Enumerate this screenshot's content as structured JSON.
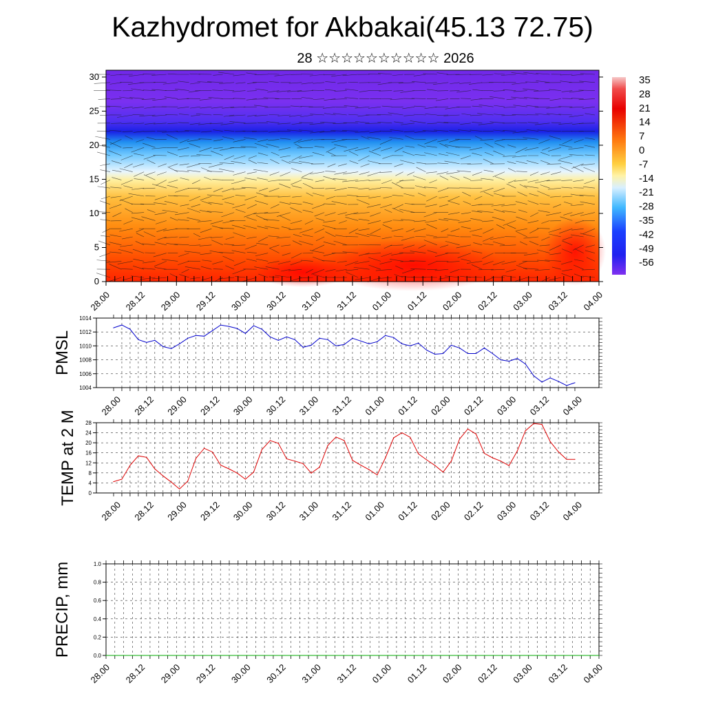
{
  "title": "Kazhydromet for Akbakai(45.13 72.75)",
  "subtitle": "28 ☆☆☆☆☆☆☆☆☆☆ 2026",
  "chart_data": [
    {
      "type": "heatmap",
      "name": "vertical cross-section (temperature with wind vectors)",
      "x_ticks": [
        "28.00",
        "28.12",
        "29.00",
        "29.12",
        "30.00",
        "30.12",
        "31.00",
        "31.12",
        "01.00",
        "01.12",
        "02.00",
        "02.12",
        "03.00",
        "03.12",
        "04.00"
      ],
      "y_ticks": [
        0,
        5,
        10,
        15,
        20,
        25,
        30
      ],
      "ylim": [
        0,
        31
      ],
      "colorbar_labels": [
        "35",
        "28",
        "21",
        "14",
        "7",
        "0",
        "-7",
        "-14",
        "-21",
        "-28",
        "-35",
        "-42",
        "-49",
        "-56"
      ],
      "colors": {
        "warm": "#ff1a00",
        "orange": "#ff9a1a",
        "yellow": "#ffe070",
        "cold_light": "#e0f0ff",
        "cold_mid": "#3fb0ff",
        "cold_deep": "#1a20e6",
        "violet": "#7a30f0"
      }
    },
    {
      "type": "line",
      "ylabel": "PMSL",
      "x_ticks": [
        "28.00",
        "28.12",
        "29.00",
        "29.12",
        "30.00",
        "30.12",
        "31.00",
        "31.12",
        "01.00",
        "01.12",
        "02.00",
        "02.12",
        "03.00",
        "03.12",
        "04.00"
      ],
      "y_ticks": [
        1004,
        1006,
        1008,
        1010,
        1012,
        1014
      ],
      "ylim": [
        1004,
        1014
      ],
      "color": "#0000cc",
      "values": [
        1012.6,
        1013.0,
        1012.4,
        1010.9,
        1010.5,
        1010.8,
        1009.9,
        1009.6,
        1010.3,
        1011.1,
        1011.5,
        1011.4,
        1012.2,
        1013.0,
        1012.8,
        1012.5,
        1011.8,
        1012.9,
        1012.4,
        1011.3,
        1010.8,
        1011.3,
        1010.9,
        1009.8,
        1010.1,
        1011.1,
        1010.9,
        1010.0,
        1010.2,
        1011.1,
        1010.7,
        1010.3,
        1010.6,
        1011.5,
        1011.2,
        1010.3,
        1010.0,
        1010.4,
        1009.4,
        1008.8,
        1008.9,
        1010.1,
        1009.7,
        1008.9,
        1008.9,
        1009.7,
        1008.9,
        1008.0,
        1007.8,
        1008.2,
        1007.4,
        1005.7,
        1004.8,
        1005.4,
        1004.9,
        1004.3,
        1004.7
      ]
    },
    {
      "type": "line",
      "ylabel": "TEMP at 2 M",
      "x_ticks": [
        "28.00",
        "28.12",
        "29.00",
        "29.12",
        "30.00",
        "30.12",
        "31.00",
        "31.12",
        "01.00",
        "01.12",
        "02.00",
        "02.12",
        "03.00",
        "03.12",
        "04.00"
      ],
      "y_ticks": [
        0,
        4,
        8,
        12,
        16,
        20,
        24,
        28
      ],
      "ylim": [
        0,
        28
      ],
      "color": "#dd0000",
      "values": [
        4.5,
        5.5,
        11.0,
        14.8,
        14.2,
        9.6,
        6.8,
        4.3,
        1.6,
        4.7,
        13.8,
        17.8,
        16.3,
        11.1,
        9.6,
        7.9,
        5.5,
        8.3,
        17.3,
        20.9,
        19.8,
        13.6,
        12.7,
        11.7,
        7.9,
        10.3,
        18.9,
        22.3,
        20.9,
        13.0,
        11.1,
        9.3,
        7.2,
        14.0,
        22.0,
        24.0,
        22.2,
        15.6,
        13.2,
        11.0,
        8.3,
        12.7,
        21.5,
        25.5,
        23.5,
        15.8,
        14.0,
        12.7,
        10.9,
        16.7,
        24.8,
        27.7,
        27.3,
        20.5,
        16.4,
        13.4,
        13.4
      ]
    },
    {
      "type": "line",
      "ylabel": "PRECIP, mm",
      "x_ticks": [
        "28.00",
        "28.12",
        "29.00",
        "29.12",
        "30.00",
        "30.12",
        "31.00",
        "31.12",
        "01.00",
        "01.12",
        "02.00",
        "02.12",
        "03.00",
        "03.12",
        "04.00"
      ],
      "y_ticks": [
        "0.0",
        "0.2",
        "0.4",
        "0.6",
        "0.8",
        "1.0"
      ],
      "ylim": [
        0,
        1
      ],
      "color": "#00aa00",
      "values": [
        0,
        0,
        0,
        0,
        0,
        0,
        0,
        0,
        0,
        0,
        0,
        0,
        0,
        0,
        0,
        0,
        0,
        0,
        0,
        0,
        0,
        0,
        0,
        0,
        0,
        0,
        0,
        0,
        0,
        0,
        0,
        0,
        0,
        0,
        0,
        0,
        0,
        0,
        0,
        0,
        0,
        0,
        0,
        0,
        0,
        0,
        0,
        0,
        0,
        0,
        0,
        0,
        0,
        0,
        0,
        0,
        0
      ]
    }
  ]
}
